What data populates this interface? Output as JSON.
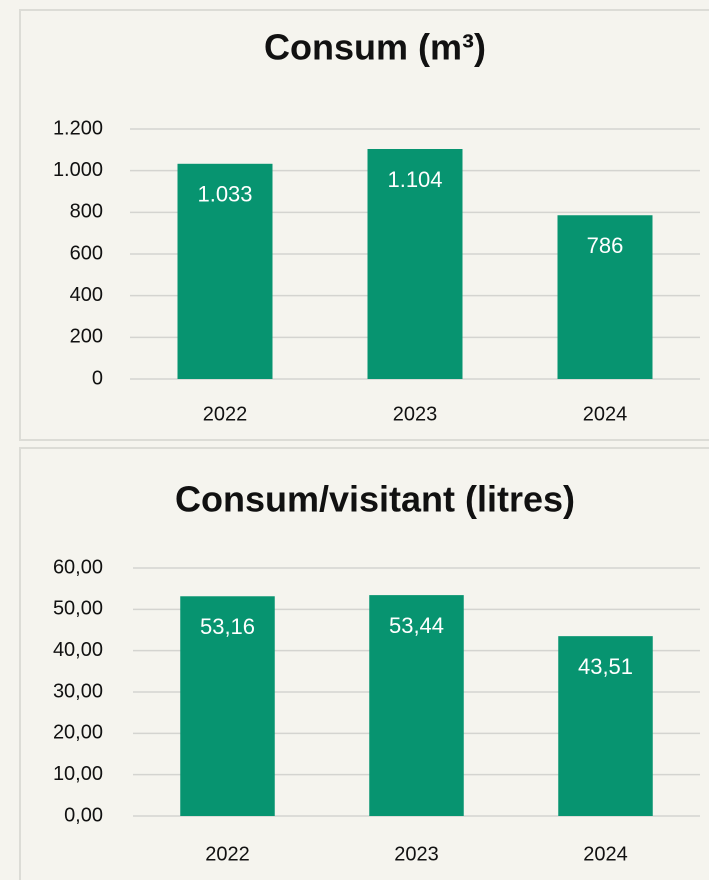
{
  "chart_data": [
    {
      "type": "bar",
      "title": "Consum (m³)",
      "categories": [
        "2022",
        "2023",
        "2024"
      ],
      "values": [
        1033,
        1104,
        786
      ],
      "value_labels": [
        "1.033",
        "1.104",
        "786"
      ],
      "color": "#079470",
      "ylim": [
        0,
        1200
      ],
      "yticks": [
        0,
        200,
        400,
        600,
        800,
        {
          "value": 1000,
          "label": "1.000"
        },
        {
          "value": 1200,
          "label": "1.200"
        }
      ],
      "grid": true
    },
    {
      "type": "bar",
      "title": "Consum/visitant (litres)",
      "categories": [
        "2022",
        "2023",
        "2024"
      ],
      "values": [
        53.16,
        53.44,
        43.51
      ],
      "value_labels": [
        "53,16",
        "53,44",
        "43,51"
      ],
      "color": "#079470",
      "ylim": [
        0,
        60
      ],
      "yticks": [
        {
          "value": 0,
          "label": "0,00"
        },
        {
          "value": 10,
          "label": "10,00"
        },
        {
          "value": 20,
          "label": "20,00"
        },
        {
          "value": 30,
          "label": "30,00"
        },
        {
          "value": 40,
          "label": "40,00"
        },
        {
          "value": 50,
          "label": "50,00"
        },
        {
          "value": 60,
          "label": "60,00"
        }
      ],
      "grid": true
    }
  ]
}
